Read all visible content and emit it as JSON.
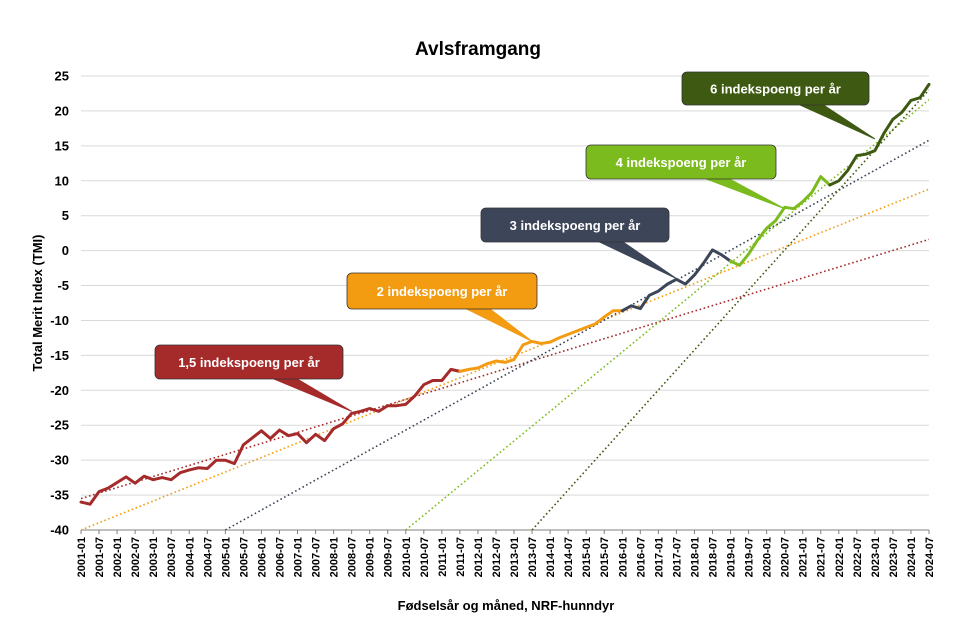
{
  "chart_data": {
    "type": "line",
    "title": "Avlsframgang",
    "xlabel": "Fødselsår og måned, NRF-hunndyr",
    "ylabel": "Total Merit Index (TMI)",
    "ylim": [
      -40,
      25
    ],
    "yticks": [
      25,
      20,
      15,
      10,
      5,
      0,
      -5,
      -10,
      -15,
      -20,
      -25,
      -30,
      -35,
      -40
    ],
    "xlim": [
      "2001-01",
      "2024-07"
    ],
    "x_tick_labels": [
      "2001-01",
      "2001-07",
      "2002-01",
      "2002-07",
      "2003-01",
      "2003-07",
      "2004-01",
      "2004-07",
      "2005-01",
      "2005-07",
      "2006-01",
      "2006-07",
      "2007-01",
      "2007-07",
      "2008-01",
      "2008-07",
      "2009-01",
      "2009-07",
      "2010-01",
      "2010-07",
      "2011-01",
      "2011-07",
      "2012-01",
      "2012-07",
      "2013-01",
      "2013-07",
      "2014-01",
      "2014-07",
      "2015-01",
      "2015-07",
      "2016-01",
      "2016-07",
      "2017-01",
      "2017-07",
      "2018-01",
      "2018-07",
      "2019-01",
      "2019-07",
      "2020-01",
      "2020-07",
      "2021-01",
      "2021-07",
      "2022-01",
      "2022-07",
      "2023-01",
      "2023-07",
      "2024-01",
      "2024-07"
    ],
    "grid": "horizontal",
    "colors": {
      "red": "#a52a2a",
      "orange": "#f39c12",
      "slate": "#3d4559",
      "lightgreen": "#7cbb1e",
      "darkgreen": "#3e5a12"
    },
    "series": [
      {
        "color": "red",
        "points": [
          [
            "2001-01",
            -36
          ],
          [
            "2001-04",
            -36.3
          ],
          [
            "2001-07",
            -34.5
          ],
          [
            "2001-10",
            -34
          ],
          [
            "2002-01",
            -33.2
          ],
          [
            "2002-04",
            -32.4
          ],
          [
            "2002-07",
            -33.3
          ],
          [
            "2002-10",
            -32.3
          ],
          [
            "2003-01",
            -32.8
          ],
          [
            "2003-04",
            -32.5
          ],
          [
            "2003-07",
            -32.8
          ],
          [
            "2003-10",
            -31.8
          ],
          [
            "2004-01",
            -31.4
          ],
          [
            "2004-04",
            -31.1
          ],
          [
            "2004-07",
            -31.2
          ],
          [
            "2004-10",
            -30
          ],
          [
            "2005-01",
            -30
          ],
          [
            "2005-04",
            -30.5
          ],
          [
            "2005-07",
            -27.8
          ],
          [
            "2005-10",
            -26.8
          ],
          [
            "2006-01",
            -25.8
          ],
          [
            "2006-04",
            -26.9
          ],
          [
            "2006-07",
            -25.7
          ],
          [
            "2006-10",
            -26.5
          ],
          [
            "2007-01",
            -26.2
          ],
          [
            "2007-04",
            -27.5
          ],
          [
            "2007-07",
            -26.3
          ],
          [
            "2007-10",
            -27.2
          ],
          [
            "2008-01",
            -25.5
          ],
          [
            "2008-04",
            -24.8
          ],
          [
            "2008-07",
            -23.3
          ],
          [
            "2008-10",
            -23
          ],
          [
            "2009-01",
            -22.6
          ],
          [
            "2009-04",
            -23
          ],
          [
            "2009-07",
            -22.2
          ],
          [
            "2009-10",
            -22.2
          ],
          [
            "2010-01",
            -22
          ],
          [
            "2010-04",
            -20.8
          ],
          [
            "2010-07",
            -19.2
          ],
          [
            "2010-10",
            -18.6
          ],
          [
            "2011-01",
            -18.6
          ],
          [
            "2011-04",
            -17
          ],
          [
            "2011-07",
            -17.3
          ]
        ]
      },
      {
        "color": "orange",
        "points": [
          [
            "2011-07",
            -17.3
          ],
          [
            "2011-10",
            -17
          ],
          [
            "2012-01",
            -16.8
          ],
          [
            "2012-04",
            -16.2
          ],
          [
            "2012-07",
            -15.8
          ],
          [
            "2012-10",
            -16
          ],
          [
            "2013-01",
            -15.6
          ],
          [
            "2013-04",
            -13.5
          ],
          [
            "2013-07",
            -13
          ],
          [
            "2013-10",
            -13.3
          ],
          [
            "2014-01",
            -13.1
          ],
          [
            "2014-04",
            -12.5
          ],
          [
            "2014-07",
            -12
          ],
          [
            "2014-10",
            -11.5
          ],
          [
            "2015-01",
            -11
          ],
          [
            "2015-04",
            -10.5
          ],
          [
            "2015-07",
            -9.5
          ],
          [
            "2015-10",
            -8.6
          ],
          [
            "2016-01",
            -8.6
          ]
        ]
      },
      {
        "color": "slate",
        "points": [
          [
            "2016-01",
            -8.6
          ],
          [
            "2016-04",
            -7.9
          ],
          [
            "2016-07",
            -8.3
          ],
          [
            "2016-10",
            -6.4
          ],
          [
            "2017-01",
            -5.8
          ],
          [
            "2017-04",
            -4.8
          ],
          [
            "2017-07",
            -4.1
          ],
          [
            "2017-10",
            -4.8
          ],
          [
            "2018-01",
            -3.5
          ],
          [
            "2018-04",
            -1.8
          ],
          [
            "2018-07",
            0.1
          ],
          [
            "2018-10",
            -0.6
          ],
          [
            "2019-01",
            -1.5
          ]
        ]
      },
      {
        "color": "lightgreen",
        "points": [
          [
            "2019-01",
            -1.5
          ],
          [
            "2019-04",
            -2.1
          ],
          [
            "2019-07",
            -0.5
          ],
          [
            "2019-10",
            1.5
          ],
          [
            "2020-01",
            3.2
          ],
          [
            "2020-04",
            4.3
          ],
          [
            "2020-07",
            6.2
          ],
          [
            "2020-10",
            6
          ],
          [
            "2021-01",
            7
          ],
          [
            "2021-04",
            8.3
          ],
          [
            "2021-07",
            10.6
          ],
          [
            "2021-10",
            9.4
          ]
        ]
      },
      {
        "color": "darkgreen",
        "points": [
          [
            "2021-10",
            9.4
          ],
          [
            "2022-01",
            10
          ],
          [
            "2022-04",
            11.5
          ],
          [
            "2022-07",
            13.6
          ],
          [
            "2022-10",
            13.8
          ],
          [
            "2023-01",
            14.3
          ],
          [
            "2023-04",
            16.8
          ],
          [
            "2023-07",
            18.8
          ],
          [
            "2023-10",
            19.8
          ],
          [
            "2024-01",
            21.5
          ],
          [
            "2024-04",
            21.9
          ],
          [
            "2024-07",
            23.8
          ]
        ]
      }
    ],
    "trendlines": [
      {
        "color": "red",
        "from": [
          "2001-01",
          -35.5
        ],
        "to": [
          "2024-07",
          1.6
        ]
      },
      {
        "color": "orange",
        "from": [
          "2001-01",
          -40
        ],
        "to": [
          "2024-07",
          8.8
        ]
      },
      {
        "color": "slate",
        "from": [
          "2005-01",
          -40
        ],
        "to": [
          "2024-07",
          15.8
        ]
      },
      {
        "color": "lightgreen",
        "from": [
          "2010-01",
          -40
        ],
        "to": [
          "2024-07",
          21.6
        ]
      },
      {
        "color": "darkgreen",
        "from": [
          "2013-07",
          -40
        ],
        "to": [
          "2024-07",
          23
        ]
      }
    ],
    "annotations": [
      {
        "text": "1,5 indekspoeng per år",
        "color": "red",
        "target": [
          "2008-07",
          -23
        ]
      },
      {
        "text": "2 indekspoeng per år",
        "color": "orange",
        "target": [
          "2013-07",
          -13
        ]
      },
      {
        "text": "3 indekspoeng per år",
        "color": "slate",
        "target": [
          "2017-07",
          -4
        ]
      },
      {
        "text": "4 indekspoeng per år",
        "color": "lightgreen",
        "target": [
          "2020-07",
          6
        ]
      },
      {
        "text": "6 indekspoeng per år",
        "color": "darkgreen",
        "target": [
          "2023-01",
          16
        ]
      }
    ]
  }
}
